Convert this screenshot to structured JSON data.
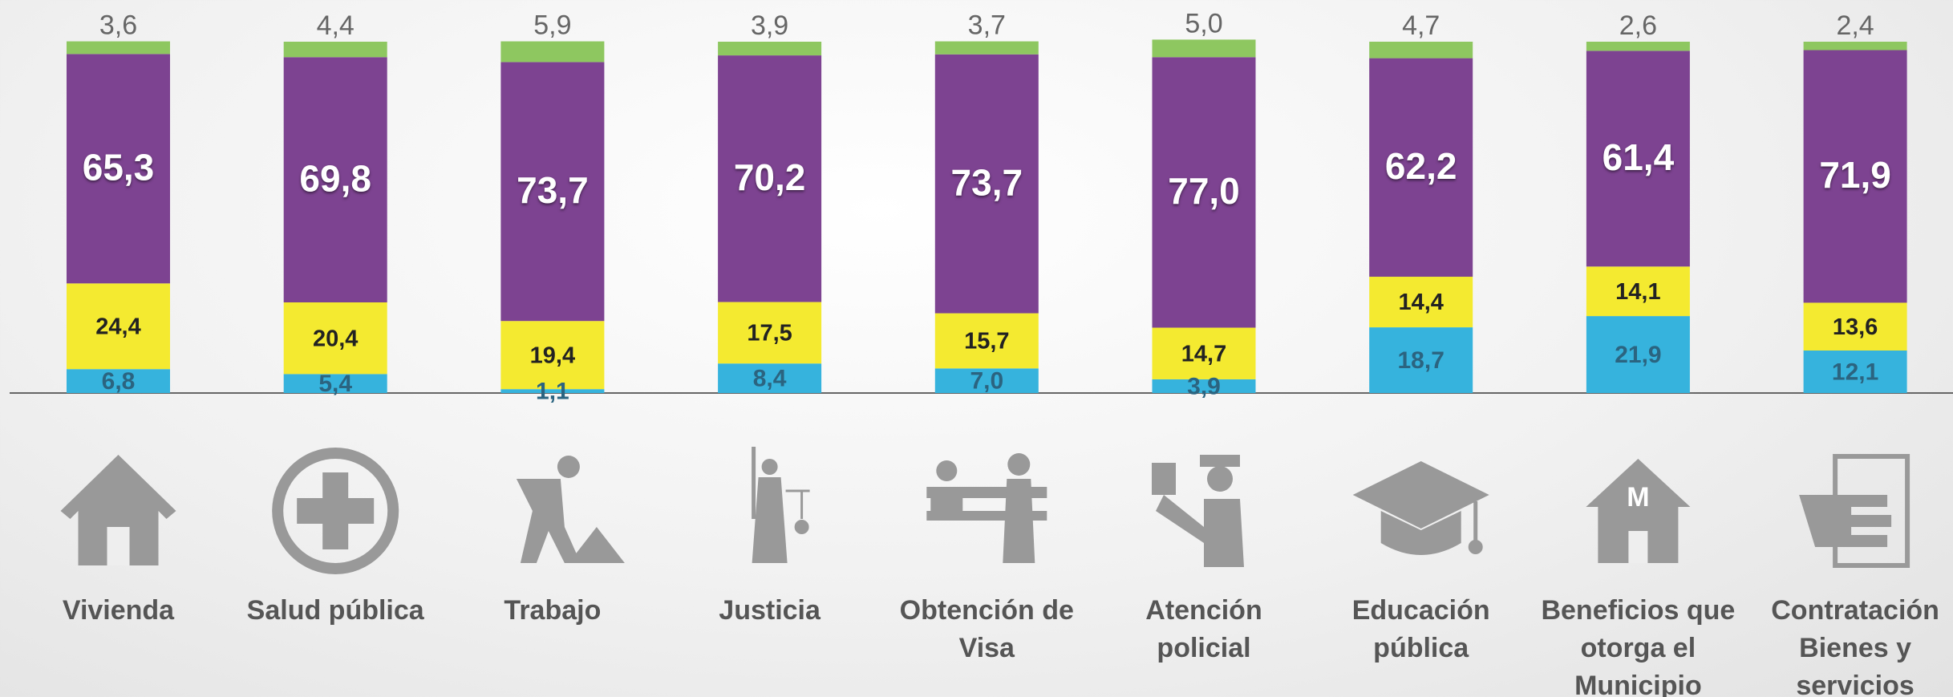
{
  "chart_data": {
    "type": "stacked-bar",
    "categories": [
      "Vivienda",
      "Salud pública",
      "Trabajo",
      "Justicia",
      "Obtención de Visa",
      "Atención policial",
      "Educación pública",
      "Beneficios que otorga el Municipio",
      "Contratación Bienes y servicios"
    ],
    "series": [
      {
        "color": "#36b3dd",
        "values": [
          6.8,
          5.4,
          1.1,
          8.4,
          7.0,
          3.9,
          18.7,
          21.9,
          12.1
        ],
        "value_labels": [
          "6,8",
          "5,4",
          "1,1",
          "8,4",
          "7,0",
          "3,9",
          "18,7",
          "21,9",
          "12,1"
        ]
      },
      {
        "color": "#f4ea30",
        "values": [
          24.4,
          20.4,
          19.4,
          17.5,
          15.7,
          14.7,
          14.4,
          14.1,
          13.6
        ],
        "value_labels": [
          "24,4",
          "20,4",
          "19,4",
          "17,5",
          "15,7",
          "14,7",
          "14,4",
          "14,1",
          "13,6"
        ]
      },
      {
        "color": "#7d4391",
        "values": [
          65.3,
          69.8,
          73.7,
          70.2,
          73.7,
          77.0,
          62.2,
          61.4,
          71.9
        ],
        "value_labels": [
          "65,3",
          "69,8",
          "73,7",
          "70,2",
          "73,7",
          "77,0",
          "62,2",
          "61,4",
          "71,9"
        ]
      },
      {
        "color": "#8ec760",
        "values": [
          3.6,
          4.4,
          5.9,
          3.9,
          3.7,
          5.0,
          4.7,
          2.6,
          2.4
        ],
        "value_labels": [
          "3,6",
          "4,4",
          "5,9",
          "3,9",
          "3,7",
          "5,0",
          "4,7",
          "2,6",
          "2,4"
        ]
      }
    ]
  }
}
